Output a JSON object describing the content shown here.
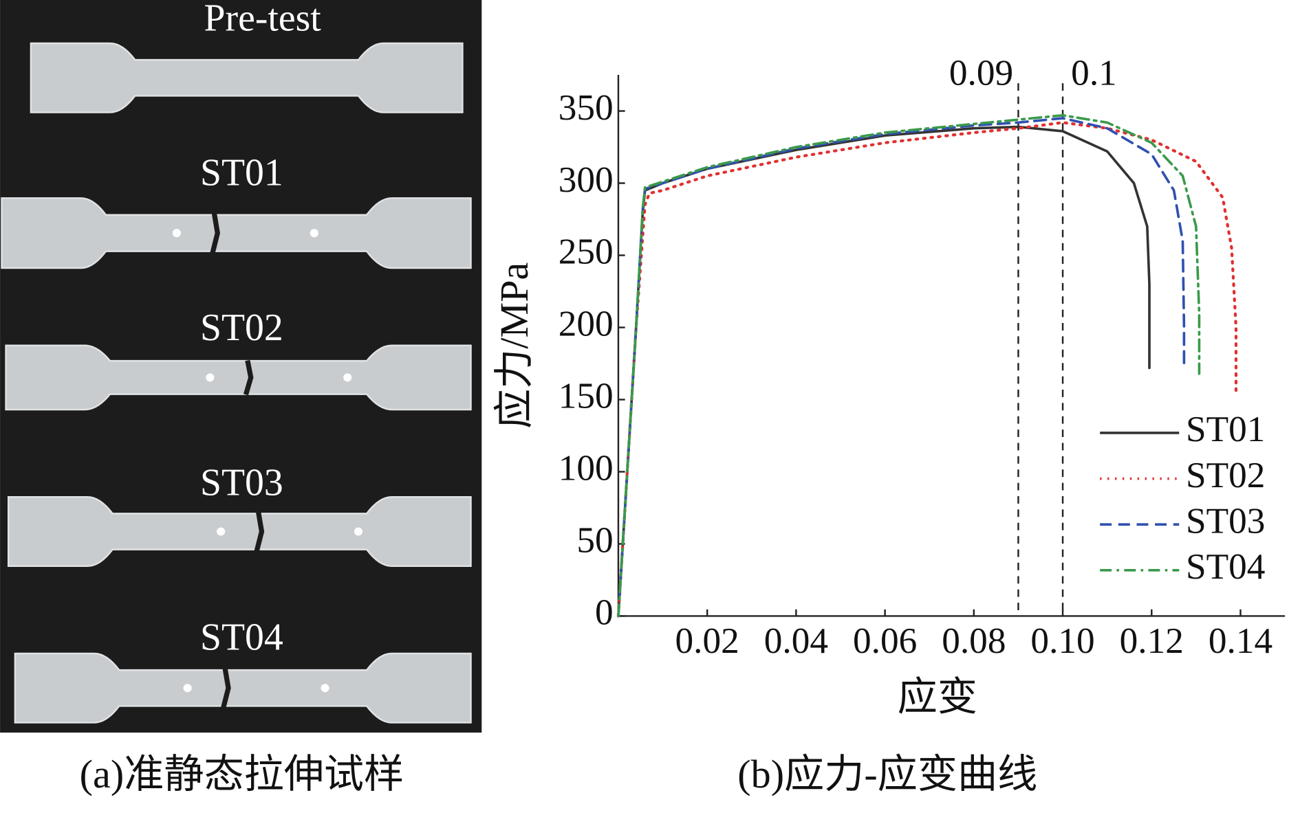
{
  "photo": {
    "labels": [
      "Pre-test",
      "ST01",
      "ST02",
      "ST03",
      "ST04"
    ],
    "caption": "(a)准静态拉伸试样"
  },
  "chart_data": {
    "type": "line",
    "title": "(b)应力-应变曲线",
    "xlabel": "应变",
    "ylabel": "应力/MPa",
    "xlim": [
      0,
      0.15
    ],
    "ylim": [
      0,
      375
    ],
    "xticks": [
      0.02,
      0.04,
      0.06,
      0.08,
      {
        "value": 0.1,
        "label": "0.10"
      },
      0.12,
      0.14
    ],
    "yticks": [
      0,
      50,
      100,
      150,
      200,
      250,
      300,
      350
    ],
    "vlines": [
      {
        "value": 0.09,
        "label": "0.09"
      },
      {
        "value": 0.1,
        "label": "0.1"
      }
    ],
    "legend": "lower-right",
    "series": [
      {
        "name": "ST01",
        "color": "#333333",
        "dash": "solid",
        "x": [
          0,
          0.002,
          0.004,
          0.0055,
          0.006,
          0.01,
          0.02,
          0.04,
          0.06,
          0.08,
          0.09,
          0.1,
          0.11,
          0.116,
          0.119,
          0.1195,
          0.1195
        ],
        "values": [
          0,
          100,
          200,
          280,
          295,
          300,
          310,
          323,
          333,
          338,
          339,
          336,
          322,
          300,
          270,
          230,
          172
        ]
      },
      {
        "name": "ST02",
        "color": "#e03030",
        "dash": "dotted",
        "x": [
          0,
          0.002,
          0.004,
          0.006,
          0.007,
          0.01,
          0.02,
          0.04,
          0.06,
          0.08,
          0.09,
          0.1,
          0.11,
          0.12,
          0.13,
          0.136,
          0.138,
          0.139,
          0.139
        ],
        "values": [
          0,
          100,
          200,
          285,
          293,
          295,
          305,
          318,
          328,
          335,
          338,
          342,
          338,
          330,
          315,
          290,
          255,
          200,
          155
        ]
      },
      {
        "name": "ST03",
        "color": "#3050b0",
        "dash": "dashed",
        "x": [
          0,
          0.002,
          0.004,
          0.0055,
          0.006,
          0.01,
          0.02,
          0.04,
          0.06,
          0.08,
          0.09,
          0.1,
          0.11,
          0.12,
          0.125,
          0.127,
          0.1273,
          0.1273
        ],
        "values": [
          0,
          100,
          200,
          282,
          296,
          300,
          310,
          324,
          334,
          340,
          342,
          345,
          338,
          320,
          295,
          260,
          200,
          172
        ]
      },
      {
        "name": "ST04",
        "color": "#3a9a4a",
        "dash": "dashdot",
        "x": [
          0,
          0.002,
          0.004,
          0.0055,
          0.006,
          0.01,
          0.02,
          0.04,
          0.06,
          0.08,
          0.09,
          0.1,
          0.11,
          0.12,
          0.127,
          0.13,
          0.1307,
          0.1307
        ],
        "values": [
          0,
          100,
          200,
          283,
          297,
          301,
          311,
          325,
          335,
          341,
          344,
          347,
          342,
          328,
          305,
          270,
          210,
          168
        ]
      }
    ]
  }
}
